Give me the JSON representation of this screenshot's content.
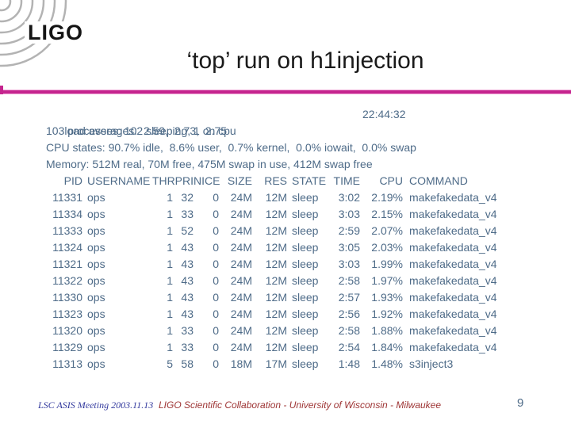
{
  "colors": {
    "accent": "#c5258e",
    "terminal_text": "#4e6b88",
    "footer_left": "#333a9e",
    "footer_center": "#9e3535",
    "logo_gray": "#b3b3b3",
    "title_text": "#1a1a1a"
  },
  "logo": {
    "text": "LIGO"
  },
  "title": "‘top’ run on h1injection",
  "terminal": {
    "load_line": "load averages:  2.59,  2.73,  2.75",
    "clock": "22:44:32",
    "summary_lines": [
      "103 processes: 102 sleeping, 1 on cpu",
      "CPU states: 90.7% idle,  8.6% user,  0.7% kernel,  0.0% iowait,  0.0% swap",
      "Memory: 512M real, 70M free, 475M swap in use, 412M swap free"
    ],
    "columns": [
      "PID",
      "USERNAME",
      "THR",
      "PRI",
      "NICE",
      "SIZE",
      "RES",
      "STATE",
      "TIME",
      "CPU",
      "COMMAND"
    ],
    "column_keys": [
      "pid",
      "user",
      "thr",
      "pri",
      "nice",
      "size",
      "res",
      "state",
      "time",
      "cpu",
      "cmd"
    ],
    "processes": [
      [
        "11331",
        "ops",
        "1",
        "32",
        "0",
        "24M",
        "12M",
        "sleep",
        "3:02",
        "2.19%",
        "makefakedata_v4"
      ],
      [
        "11334",
        "ops",
        "1",
        "33",
        "0",
        "24M",
        "12M",
        "sleep",
        "3:03",
        "2.15%",
        "makefakedata_v4"
      ],
      [
        "11333",
        "ops",
        "1",
        "52",
        "0",
        "24M",
        "12M",
        "sleep",
        "2:59",
        "2.07%",
        "makefakedata_v4"
      ],
      [
        "11324",
        "ops",
        "1",
        "43",
        "0",
        "24M",
        "12M",
        "sleep",
        "3:05",
        "2.03%",
        "makefakedata_v4"
      ],
      [
        "11321",
        "ops",
        "1",
        "43",
        "0",
        "24M",
        "12M",
        "sleep",
        "3:03",
        "1.99%",
        "makefakedata_v4"
      ],
      [
        "11322",
        "ops",
        "1",
        "43",
        "0",
        "24M",
        "12M",
        "sleep",
        "2:58",
        "1.97%",
        "makefakedata_v4"
      ],
      [
        "11330",
        "ops",
        "1",
        "43",
        "0",
        "24M",
        "12M",
        "sleep",
        "2:57",
        "1.93%",
        "makefakedata_v4"
      ],
      [
        "11323",
        "ops",
        "1",
        "43",
        "0",
        "24M",
        "12M",
        "sleep",
        "2:56",
        "1.92%",
        "makefakedata_v4"
      ],
      [
        "11320",
        "ops",
        "1",
        "33",
        "0",
        "24M",
        "12M",
        "sleep",
        "2:58",
        "1.88%",
        "makefakedata_v4"
      ],
      [
        "11329",
        "ops",
        "1",
        "33",
        "0",
        "24M",
        "12M",
        "sleep",
        "2:54",
        "1.84%",
        "makefakedata_v4"
      ],
      [
        "11313",
        "ops",
        "5",
        "58",
        "0",
        "18M",
        "17M",
        "sleep",
        "1:48",
        "1.48%",
        "s3inject3"
      ]
    ]
  },
  "footer": {
    "left": "LSC ASIS Meeting 2003.11.13",
    "center": "LIGO Scientific Collaboration - University of Wisconsin - Milwaukee",
    "page": "9"
  }
}
